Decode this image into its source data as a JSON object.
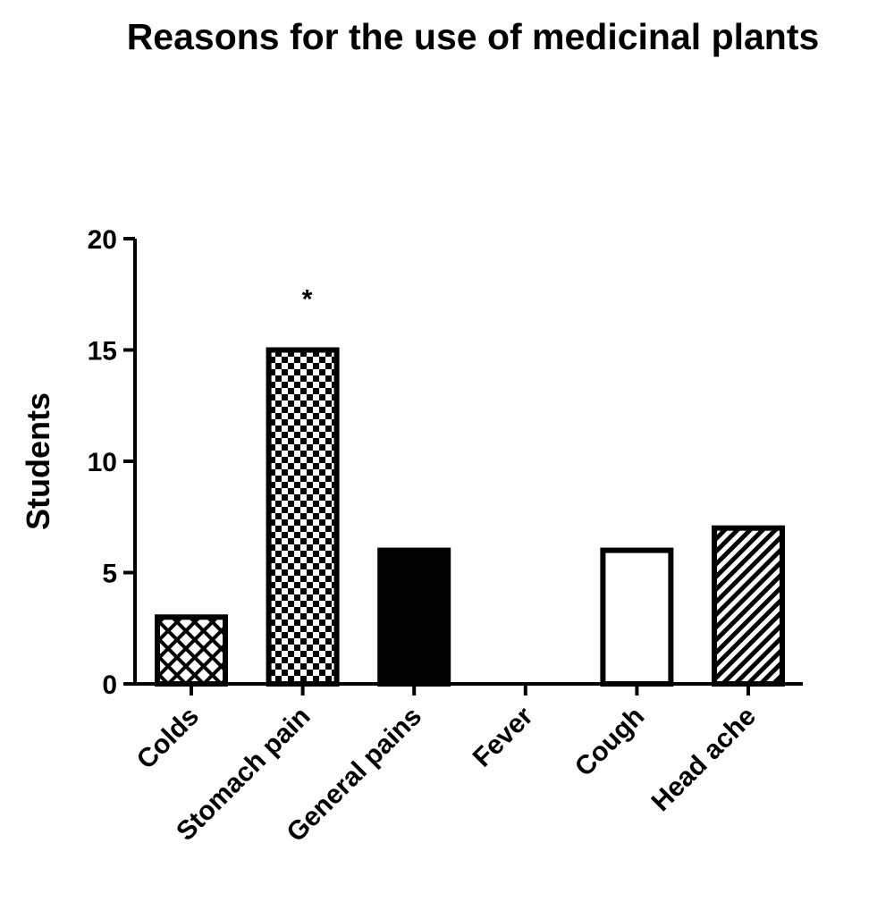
{
  "chart_data": {
    "type": "bar",
    "title": "Reasons for the use of medicinal plants",
    "xlabel": "",
    "ylabel": "Students",
    "ylim": [
      0,
      20
    ],
    "yticks": [
      "0",
      "5",
      "10",
      "15",
      "20"
    ],
    "grid": false,
    "categories": [
      "Colds",
      "Stomach pain",
      "General pains",
      "Fever",
      "Cough",
      "Head ache"
    ],
    "values": [
      3,
      15,
      6,
      0,
      6,
      7
    ],
    "fills": [
      "diamond-crosshatch",
      "checkerboard",
      "solid-black",
      "none",
      "white",
      "diagonal-stripes"
    ],
    "annotations": [
      {
        "category": "Stomach pain",
        "text": "*"
      }
    ]
  }
}
